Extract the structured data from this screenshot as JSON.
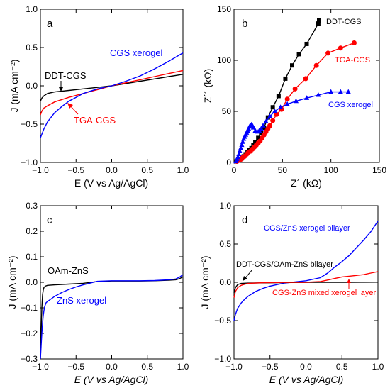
{
  "chart_data": [
    {
      "panel": "a",
      "type": "line",
      "xlim": [
        -1.0,
        1.0
      ],
      "ylim": [
        -1.0,
        1.0
      ],
      "xticks": [
        -1.0,
        -0.5,
        0.0,
        0.5,
        1.0
      ],
      "yticks": [
        -1.0,
        -0.5,
        0.0,
        0.5,
        1.0
      ],
      "xlabel": "E (V vs Ag/AgCl)",
      "ylabel": "J (mA cm⁻²)",
      "series": [
        {
          "name": "DDT-CGS",
          "color": "#000000",
          "x": [
            -1.0,
            -0.98,
            -0.95,
            -0.9,
            -0.8,
            -0.6,
            -0.4,
            -0.2,
            0.0,
            0.2,
            0.4,
            0.6,
            0.8,
            1.0
          ],
          "y": [
            -0.2,
            -0.16,
            -0.13,
            -0.1,
            -0.08,
            -0.06,
            -0.04,
            -0.02,
            0.0,
            0.03,
            0.06,
            0.09,
            0.12,
            0.15
          ]
        },
        {
          "name": "TGA-CGS",
          "color": "#ff0000",
          "x": [
            -1.0,
            -0.98,
            -0.95,
            -0.9,
            -0.8,
            -0.6,
            -0.4,
            -0.2,
            0.0,
            0.2,
            0.4,
            0.6,
            0.8,
            1.0
          ],
          "y": [
            -0.38,
            -0.33,
            -0.29,
            -0.26,
            -0.21,
            -0.15,
            -0.1,
            -0.05,
            0.0,
            0.04,
            0.08,
            0.12,
            0.16,
            0.2
          ]
        },
        {
          "name": "CGS xerogel",
          "color": "#0000ff",
          "x": [
            -1.0,
            -0.95,
            -0.9,
            -0.8,
            -0.7,
            -0.6,
            -0.5,
            -0.4,
            -0.3,
            -0.2,
            -0.1,
            0.0,
            0.2,
            0.4,
            0.6,
            0.8,
            1.0
          ],
          "y": [
            -0.68,
            -0.56,
            -0.47,
            -0.35,
            -0.27,
            -0.2,
            -0.15,
            -0.1,
            -0.07,
            -0.04,
            -0.02,
            0.0,
            0.06,
            0.13,
            0.22,
            0.32,
            0.43
          ]
        }
      ],
      "annotations": [
        {
          "text": "CGS xerogel",
          "color": "#0000ff"
        },
        {
          "text": "DDT-CGS",
          "color": "#000000"
        },
        {
          "text": "TGA-CGS",
          "color": "#ff0000"
        }
      ],
      "panel_label": "a"
    },
    {
      "panel": "b",
      "type": "scatter",
      "xlim": [
        0,
        150
      ],
      "ylim": [
        0,
        150
      ],
      "xticks": [
        0,
        50,
        100,
        150
      ],
      "yticks": [
        0,
        50,
        100,
        150
      ],
      "xlabel": "Z´ (kΩ)",
      "ylabel": "Z´´ (kΩ)",
      "series": [
        {
          "name": "DDT-CGS",
          "color": "#000000",
          "marker": "square",
          "x": [
            2,
            4,
            6,
            8,
            10,
            12,
            14,
            16,
            18,
            20,
            22,
            25,
            28,
            31,
            35,
            40,
            46,
            53,
            60,
            67,
            75,
            87
          ],
          "y": [
            1,
            2,
            3,
            4,
            6,
            8,
            10,
            12,
            14,
            17,
            20,
            24,
            29,
            34,
            44,
            54,
            65,
            82,
            95,
            106,
            116,
            136
          ]
        },
        {
          "name": "TGA-CGS",
          "color": "#ff0000",
          "marker": "circle",
          "x": [
            3,
            5,
            7,
            9,
            11,
            13,
            15,
            17,
            19,
            21,
            23,
            25,
            27,
            29,
            31,
            33,
            35,
            37,
            40,
            44,
            49,
            55,
            63,
            74,
            85,
            97,
            110,
            124
          ],
          "y": [
            1,
            2,
            3,
            5,
            6,
            8,
            10,
            11,
            13,
            15,
            17,
            19,
            21,
            24,
            27,
            30,
            33,
            36,
            41,
            47,
            52,
            62,
            72,
            82,
            95,
            107,
            112,
            117
          ]
        },
        {
          "name": "CGS xerogel",
          "color": "#0000ff",
          "marker": "triangle",
          "x": [
            2,
            3,
            4,
            5,
            6,
            7,
            8,
            9,
            10,
            11,
            12,
            13,
            14,
            15,
            16,
            17,
            18,
            19,
            20,
            22,
            24,
            26,
            28,
            30,
            33,
            37,
            42,
            48,
            55,
            64,
            75,
            87,
            100,
            110,
            118
          ],
          "y": [
            1,
            3,
            5,
            8,
            11,
            14,
            17,
            20,
            23,
            25,
            27,
            29,
            31,
            33,
            35,
            36,
            37,
            36,
            34,
            31,
            30,
            31,
            33,
            36,
            40,
            45,
            50,
            54,
            57,
            60,
            63,
            66,
            69,
            69,
            69
          ]
        }
      ],
      "legend_entries": [
        {
          "text": "DDT-CGS",
          "color": "#000000"
        },
        {
          "text": "TGA-CGS",
          "color": "#ff0000"
        },
        {
          "text": "CGS xerogel",
          "color": "#0000ff"
        }
      ],
      "panel_label": "b"
    },
    {
      "panel": "c",
      "type": "line",
      "xlim": [
        -1.0,
        1.0
      ],
      "ylim": [
        -0.3,
        0.3
      ],
      "xticks": [
        -1.0,
        -0.5,
        0.0,
        0.5,
        1.0
      ],
      "yticks": [
        -0.3,
        -0.2,
        -0.1,
        0.0,
        0.1,
        0.2,
        0.3
      ],
      "xlabel": "E (V vs Ag/AgCl)",
      "ylabel": "J (mA cm⁻²)",
      "series": [
        {
          "name": "OAm-ZnS",
          "color": "#000000",
          "x": [
            -1.0,
            -0.99,
            -0.98,
            -0.97,
            -0.96,
            -0.95,
            -0.93,
            -0.9,
            -0.8,
            -0.6,
            -0.4,
            -0.2,
            0.0,
            0.2,
            0.4,
            0.6,
            0.8,
            0.9,
            0.95,
            1.0
          ],
          "y": [
            -0.3,
            -0.2,
            -0.1,
            -0.05,
            -0.03,
            -0.02,
            -0.015,
            -0.012,
            -0.01,
            -0.007,
            -0.004,
            0.003,
            0.005,
            0.005,
            0.005,
            0.006,
            0.008,
            0.01,
            0.014,
            0.022
          ]
        },
        {
          "name": "ZnS xerogel",
          "color": "#0000ff",
          "x": [
            -1.0,
            -0.99,
            -0.98,
            -0.97,
            -0.96,
            -0.95,
            -0.94,
            -0.92,
            -0.9,
            -0.85,
            -0.8,
            -0.7,
            -0.6,
            -0.5,
            -0.4,
            -0.3,
            -0.2,
            0.0,
            0.2,
            0.4,
            0.6,
            0.8,
            0.9,
            0.95,
            1.0
          ],
          "y": [
            -0.3,
            -0.25,
            -0.2,
            -0.16,
            -0.13,
            -0.11,
            -0.095,
            -0.08,
            -0.075,
            -0.065,
            -0.055,
            -0.04,
            -0.028,
            -0.018,
            -0.01,
            -0.003,
            0.004,
            0.006,
            0.006,
            0.006,
            0.007,
            0.01,
            0.013,
            0.02,
            0.03
          ]
        }
      ],
      "annotations": [
        {
          "text": "OAm-ZnS",
          "color": "#000000"
        },
        {
          "text": "ZnS xerogel",
          "color": "#0000ff"
        }
      ],
      "panel_label": "c"
    },
    {
      "panel": "d",
      "type": "line",
      "xlim": [
        -1.0,
        1.0
      ],
      "ylim": [
        -1.0,
        1.0
      ],
      "xticks": [
        -1.0,
        -0.5,
        0.0,
        0.5,
        1.0
      ],
      "yticks": [
        -1.0,
        -0.5,
        0.0,
        0.5,
        1.0
      ],
      "xlabel": "E (V vs Ag/AgCl)",
      "ylabel": "J (mA cm⁻²)",
      "series": [
        {
          "name": "CGS/ZnS xerogel bilayer",
          "color": "#0000ff",
          "x": [
            -1.0,
            -0.98,
            -0.95,
            -0.9,
            -0.85,
            -0.8,
            -0.7,
            -0.6,
            -0.5,
            -0.4,
            -0.3,
            -0.2,
            0.0,
            0.2,
            0.3,
            0.4,
            0.5,
            0.6,
            0.7,
            0.8,
            0.9,
            1.0
          ],
          "y": [
            -0.5,
            -0.42,
            -0.34,
            -0.27,
            -0.22,
            -0.18,
            -0.12,
            -0.08,
            -0.05,
            -0.03,
            -0.01,
            0.0,
            0.02,
            0.06,
            0.12,
            0.2,
            0.27,
            0.35,
            0.45,
            0.55,
            0.66,
            0.8
          ]
        },
        {
          "name": "DDT-CGS/OAm-ZnS bilayer",
          "color": "#000000",
          "x": [
            -1.0,
            -0.98,
            -0.95,
            -0.9,
            -0.8,
            -0.6,
            -0.4,
            -0.2,
            0.0,
            0.2,
            0.4,
            0.6,
            0.8,
            1.0
          ],
          "y": [
            -0.14,
            -0.07,
            -0.03,
            -0.015,
            -0.01,
            -0.007,
            -0.005,
            -0.003,
            -0.002,
            -0.001,
            0.0,
            0.0,
            0.001,
            0.002
          ]
        },
        {
          "name": "CGS-ZnS mixed xerogel layer",
          "color": "#ff0000",
          "x": [
            -1.0,
            -0.98,
            -0.95,
            -0.9,
            -0.85,
            -0.8,
            -0.7,
            -0.6,
            -0.4,
            -0.2,
            0.0,
            0.2,
            0.3,
            0.4,
            0.5,
            0.6,
            0.7,
            0.8,
            0.9,
            1.0
          ],
          "y": [
            -0.2,
            -0.12,
            -0.07,
            -0.04,
            -0.025,
            -0.015,
            -0.01,
            -0.006,
            -0.003,
            -0.001,
            0.0,
            0.01,
            0.03,
            0.05,
            0.07,
            0.08,
            0.09,
            0.1,
            0.12,
            0.14
          ]
        }
      ],
      "annotations": [
        {
          "text": "CGS/ZnS xerogel bilayer",
          "color": "#0000ff"
        },
        {
          "text": "DDT-CGS/OAm-ZnS bilayer",
          "color": "#000000"
        },
        {
          "text": "CGS-ZnS mixed xerogel layer",
          "color": "#ff0000"
        }
      ],
      "panel_label": "d"
    }
  ]
}
